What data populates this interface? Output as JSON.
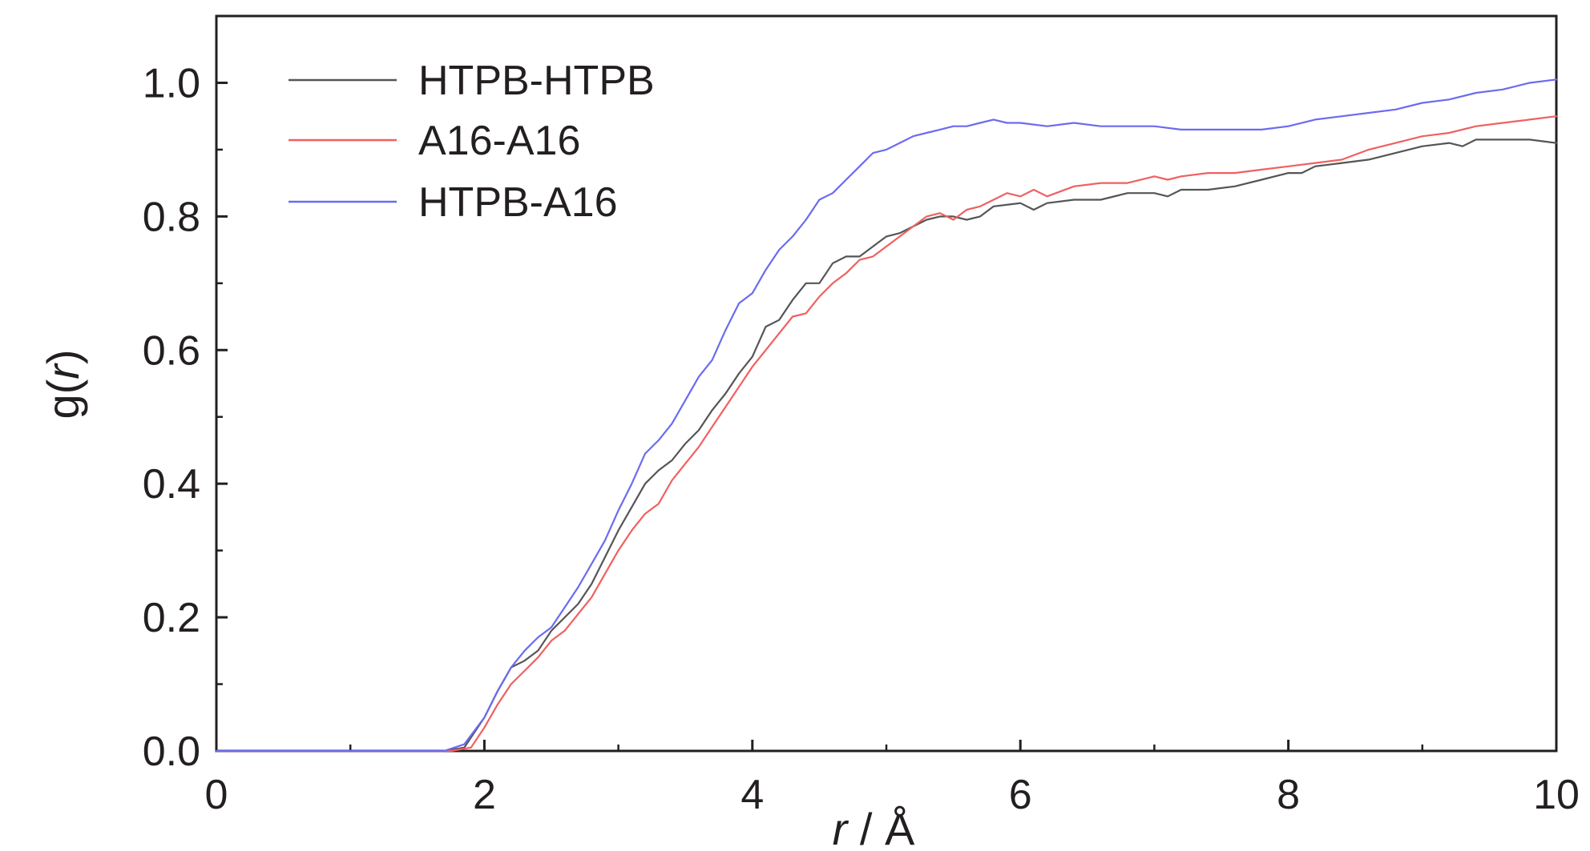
{
  "chart_data": {
    "type": "line",
    "xlabel": {
      "var": "r",
      "unit": " / Å"
    },
    "ylabel": {
      "pre": "g(",
      "var": "r",
      "post": ")"
    },
    "xlim": [
      0,
      10
    ],
    "ylim": [
      0,
      1.1
    ],
    "xticks": [
      0,
      2,
      4,
      6,
      8,
      10
    ],
    "yticks": [
      0.0,
      0.2,
      0.4,
      0.6,
      0.8,
      1.0
    ],
    "x_tick_labels": [
      "0",
      "2",
      "4",
      "6",
      "8",
      "10"
    ],
    "y_tick_labels": [
      "0.0",
      "0.2",
      "0.4",
      "0.6",
      "0.8",
      "1.0"
    ],
    "grid": false,
    "legend_position": "top-left",
    "series": [
      {
        "name": "HTPB-HTPB",
        "color": "#555555",
        "points": [
          [
            0,
            0
          ],
          [
            1.7,
            0
          ],
          [
            1.85,
            0.005
          ],
          [
            2.0,
            0.05
          ],
          [
            2.1,
            0.09
          ],
          [
            2.2,
            0.125
          ],
          [
            2.3,
            0.135
          ],
          [
            2.4,
            0.15
          ],
          [
            2.5,
            0.18
          ],
          [
            2.6,
            0.2
          ],
          [
            2.7,
            0.22
          ],
          [
            2.8,
            0.25
          ],
          [
            2.9,
            0.29
          ],
          [
            3.0,
            0.33
          ],
          [
            3.1,
            0.365
          ],
          [
            3.2,
            0.4
          ],
          [
            3.3,
            0.42
          ],
          [
            3.4,
            0.435
          ],
          [
            3.5,
            0.46
          ],
          [
            3.6,
            0.48
          ],
          [
            3.7,
            0.51
          ],
          [
            3.8,
            0.535
          ],
          [
            3.9,
            0.565
          ],
          [
            4.0,
            0.59
          ],
          [
            4.1,
            0.635
          ],
          [
            4.2,
            0.645
          ],
          [
            4.3,
            0.675
          ],
          [
            4.4,
            0.7
          ],
          [
            4.5,
            0.7
          ],
          [
            4.6,
            0.73
          ],
          [
            4.7,
            0.74
          ],
          [
            4.8,
            0.74
          ],
          [
            4.9,
            0.755
          ],
          [
            5.0,
            0.77
          ],
          [
            5.1,
            0.775
          ],
          [
            5.2,
            0.785
          ],
          [
            5.3,
            0.795
          ],
          [
            5.4,
            0.8
          ],
          [
            5.5,
            0.8
          ],
          [
            5.6,
            0.795
          ],
          [
            5.7,
            0.8
          ],
          [
            5.8,
            0.815
          ],
          [
            6.0,
            0.82
          ],
          [
            6.1,
            0.81
          ],
          [
            6.2,
            0.82
          ],
          [
            6.4,
            0.825
          ],
          [
            6.6,
            0.825
          ],
          [
            6.8,
            0.835
          ],
          [
            7.0,
            0.835
          ],
          [
            7.1,
            0.83
          ],
          [
            7.2,
            0.84
          ],
          [
            7.4,
            0.84
          ],
          [
            7.6,
            0.845
          ],
          [
            7.8,
            0.855
          ],
          [
            8.0,
            0.865
          ],
          [
            8.1,
            0.865
          ],
          [
            8.2,
            0.875
          ],
          [
            8.4,
            0.88
          ],
          [
            8.6,
            0.885
          ],
          [
            8.8,
            0.895
          ],
          [
            9.0,
            0.905
          ],
          [
            9.2,
            0.91
          ],
          [
            9.3,
            0.905
          ],
          [
            9.4,
            0.915
          ],
          [
            9.6,
            0.915
          ],
          [
            9.8,
            0.915
          ],
          [
            10.0,
            0.91
          ]
        ]
      },
      {
        "name": "A16-A16",
        "color": "#f06060",
        "points": [
          [
            0,
            0
          ],
          [
            1.75,
            0
          ],
          [
            1.9,
            0.005
          ],
          [
            2.0,
            0.035
          ],
          [
            2.1,
            0.07
          ],
          [
            2.2,
            0.1
          ],
          [
            2.3,
            0.12
          ],
          [
            2.4,
            0.14
          ],
          [
            2.5,
            0.165
          ],
          [
            2.6,
            0.18
          ],
          [
            2.7,
            0.205
          ],
          [
            2.8,
            0.23
          ],
          [
            2.9,
            0.265
          ],
          [
            3.0,
            0.3
          ],
          [
            3.1,
            0.33
          ],
          [
            3.2,
            0.355
          ],
          [
            3.3,
            0.37
          ],
          [
            3.4,
            0.405
          ],
          [
            3.5,
            0.43
          ],
          [
            3.6,
            0.455
          ],
          [
            3.7,
            0.485
          ],
          [
            3.8,
            0.515
          ],
          [
            3.9,
            0.545
          ],
          [
            4.0,
            0.575
          ],
          [
            4.1,
            0.6
          ],
          [
            4.2,
            0.625
          ],
          [
            4.3,
            0.65
          ],
          [
            4.4,
            0.655
          ],
          [
            4.5,
            0.68
          ],
          [
            4.6,
            0.7
          ],
          [
            4.7,
            0.715
          ],
          [
            4.8,
            0.735
          ],
          [
            4.9,
            0.74
          ],
          [
            5.0,
            0.755
          ],
          [
            5.1,
            0.77
          ],
          [
            5.2,
            0.785
          ],
          [
            5.3,
            0.8
          ],
          [
            5.4,
            0.805
          ],
          [
            5.5,
            0.795
          ],
          [
            5.6,
            0.81
          ],
          [
            5.7,
            0.815
          ],
          [
            5.8,
            0.825
          ],
          [
            5.9,
            0.835
          ],
          [
            6.0,
            0.83
          ],
          [
            6.1,
            0.84
          ],
          [
            6.2,
            0.83
          ],
          [
            6.4,
            0.845
          ],
          [
            6.6,
            0.85
          ],
          [
            6.8,
            0.85
          ],
          [
            7.0,
            0.86
          ],
          [
            7.1,
            0.855
          ],
          [
            7.2,
            0.86
          ],
          [
            7.4,
            0.865
          ],
          [
            7.6,
            0.865
          ],
          [
            7.8,
            0.87
          ],
          [
            8.0,
            0.875
          ],
          [
            8.2,
            0.88
          ],
          [
            8.4,
            0.885
          ],
          [
            8.6,
            0.9
          ],
          [
            8.8,
            0.91
          ],
          [
            9.0,
            0.92
          ],
          [
            9.2,
            0.925
          ],
          [
            9.4,
            0.935
          ],
          [
            9.6,
            0.94
          ],
          [
            9.8,
            0.945
          ],
          [
            10.0,
            0.95
          ]
        ]
      },
      {
        "name": "HTPB-A16",
        "color": "#6b6bf0",
        "points": [
          [
            0,
            0
          ],
          [
            1.7,
            0
          ],
          [
            1.85,
            0.01
          ],
          [
            2.0,
            0.05
          ],
          [
            2.1,
            0.09
          ],
          [
            2.2,
            0.125
          ],
          [
            2.3,
            0.15
          ],
          [
            2.4,
            0.17
          ],
          [
            2.5,
            0.185
          ],
          [
            2.6,
            0.215
          ],
          [
            2.7,
            0.245
          ],
          [
            2.8,
            0.28
          ],
          [
            2.9,
            0.315
          ],
          [
            3.0,
            0.36
          ],
          [
            3.1,
            0.4
          ],
          [
            3.2,
            0.445
          ],
          [
            3.3,
            0.465
          ],
          [
            3.4,
            0.49
          ],
          [
            3.5,
            0.525
          ],
          [
            3.6,
            0.56
          ],
          [
            3.7,
            0.585
          ],
          [
            3.8,
            0.63
          ],
          [
            3.9,
            0.67
          ],
          [
            4.0,
            0.685
          ],
          [
            4.1,
            0.72
          ],
          [
            4.2,
            0.75
          ],
          [
            4.3,
            0.77
          ],
          [
            4.4,
            0.795
          ],
          [
            4.5,
            0.825
          ],
          [
            4.6,
            0.835
          ],
          [
            4.7,
            0.855
          ],
          [
            4.8,
            0.875
          ],
          [
            4.9,
            0.895
          ],
          [
            5.0,
            0.9
          ],
          [
            5.1,
            0.91
          ],
          [
            5.2,
            0.92
          ],
          [
            5.3,
            0.925
          ],
          [
            5.4,
            0.93
          ],
          [
            5.5,
            0.935
          ],
          [
            5.6,
            0.935
          ],
          [
            5.7,
            0.94
          ],
          [
            5.8,
            0.945
          ],
          [
            5.9,
            0.94
          ],
          [
            6.0,
            0.94
          ],
          [
            6.2,
            0.935
          ],
          [
            6.4,
            0.94
          ],
          [
            6.6,
            0.935
          ],
          [
            6.8,
            0.935
          ],
          [
            7.0,
            0.935
          ],
          [
            7.2,
            0.93
          ],
          [
            7.4,
            0.93
          ],
          [
            7.6,
            0.93
          ],
          [
            7.8,
            0.93
          ],
          [
            8.0,
            0.935
          ],
          [
            8.2,
            0.945
          ],
          [
            8.4,
            0.95
          ],
          [
            8.6,
            0.955
          ],
          [
            8.8,
            0.96
          ],
          [
            9.0,
            0.97
          ],
          [
            9.2,
            0.975
          ],
          [
            9.4,
            0.985
          ],
          [
            9.6,
            0.99
          ],
          [
            9.8,
            1.0
          ],
          [
            10.0,
            1.005
          ]
        ]
      }
    ]
  }
}
